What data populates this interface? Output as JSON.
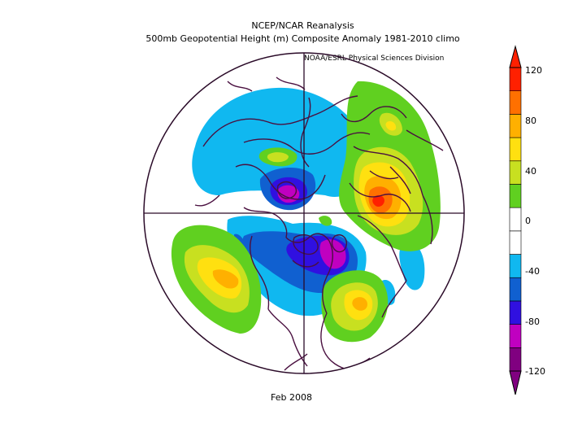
{
  "header": {
    "line1": "NCEP/NCAR Reanalysis",
    "line2": "500mb Geopotential Height (m) Composite Anomaly 1981-2010 climo",
    "credit": "NOAA/ESRL Physical Sciences Division"
  },
  "footer": {
    "date": "Feb 2008"
  },
  "colorbar": {
    "labels": [
      "120",
      "80",
      "40",
      "0",
      "-40",
      "-80",
      "-120"
    ],
    "colors": [
      "#800080",
      "#c000c0",
      "#3010e0",
      "#1060d0",
      "#10b8f0",
      "#ffffff",
      "#ffffff",
      "#60d020",
      "#c8e020",
      "#ffe010",
      "#ffb000",
      "#ff7000",
      "#ff2000"
    ]
  },
  "map": {
    "projection": "polar stereographic north",
    "colors": {
      "coast": "#4a1040",
      "graticule": "#2a0a28",
      "neg40": "#10b8f0",
      "neg60": "#1060d0",
      "neg80": "#3010e0",
      "neg100": "#c000c0",
      "neg120": "#800080",
      "pos20": "#60d020",
      "pos40": "#c8e020",
      "pos60": "#ffe010",
      "pos80": "#ffb000",
      "pos100": "#ff7000",
      "pos120": "#ff2000"
    }
  }
}
